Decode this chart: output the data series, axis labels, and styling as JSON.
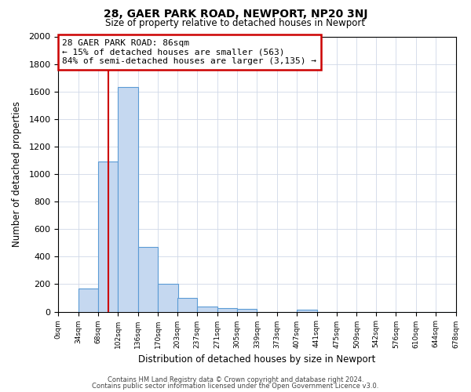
{
  "title1": "28, GAER PARK ROAD, NEWPORT, NP20 3NJ",
  "title2": "Size of property relative to detached houses in Newport",
  "xlabel": "Distribution of detached houses by size in Newport",
  "ylabel": "Number of detached properties",
  "bar_left_edges": [
    34,
    68,
    102,
    136,
    170,
    203,
    237,
    271,
    305,
    339,
    373,
    407,
    441,
    475,
    509,
    542,
    576,
    610,
    644
  ],
  "bar_heights": [
    170,
    1090,
    1630,
    470,
    200,
    100,
    40,
    25,
    20,
    0,
    0,
    15,
    0,
    0,
    0,
    0,
    0,
    0,
    0
  ],
  "bin_width": 34,
  "bar_color": "#c5d8f0",
  "bar_edge_color": "#5b9bd5",
  "property_value": 86,
  "red_line_x": 86,
  "red_line_color": "#cc0000",
  "annotation_line1": "28 GAER PARK ROAD: 86sqm",
  "annotation_line2": "← 15% of detached houses are smaller (563)",
  "annotation_line3": "84% of semi-detached houses are larger (3,135) →",
  "annotation_box_color": "#ffffff",
  "annotation_border_color": "#cc0000",
  "tick_labels": [
    "0sqm",
    "34sqm",
    "68sqm",
    "102sqm",
    "136sqm",
    "170sqm",
    "203sqm",
    "237sqm",
    "271sqm",
    "305sqm",
    "339sqm",
    "373sqm",
    "407sqm",
    "441sqm",
    "475sqm",
    "509sqm",
    "542sqm",
    "576sqm",
    "610sqm",
    "644sqm",
    "678sqm"
  ],
  "ylim": [
    0,
    2000
  ],
  "yticks": [
    0,
    200,
    400,
    600,
    800,
    1000,
    1200,
    1400,
    1600,
    1800,
    2000
  ],
  "footnote1": "Contains HM Land Registry data © Crown copyright and database right 2024.",
  "footnote2": "Contains public sector information licensed under the Open Government Licence v3.0.",
  "bg_color": "#ffffff",
  "grid_color": "#d0d8e8"
}
